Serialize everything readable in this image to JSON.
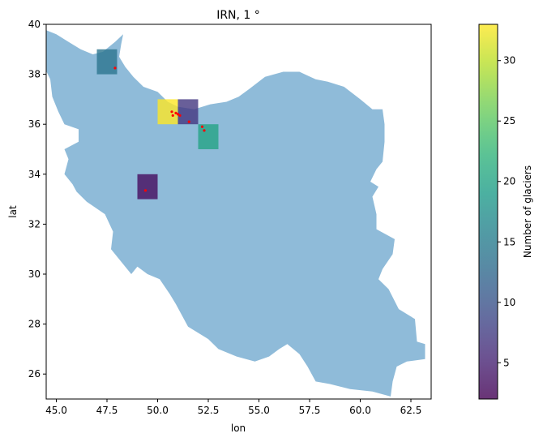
{
  "chart_data": {
    "type": "heatmap",
    "title": "IRN, 1 °",
    "xlabel": "lon",
    "ylabel": "lat",
    "xlim": [
      44.5,
      63.5
    ],
    "ylim": [
      25,
      40
    ],
    "xticks": [
      45.0,
      47.5,
      50.0,
      52.5,
      55.0,
      57.5,
      60.0,
      62.5
    ],
    "xtick_labels": [
      "45.0",
      "47.5",
      "50.0",
      "52.5",
      "55.0",
      "57.5",
      "60.0",
      "62.5"
    ],
    "yticks": [
      26,
      28,
      30,
      32,
      34,
      36,
      38,
      40
    ],
    "ytick_labels": [
      "26",
      "28",
      "30",
      "32",
      "34",
      "36",
      "38",
      "40"
    ],
    "grid": false,
    "country_color": "#8fbbd9",
    "country_outline": [
      [
        44.4,
        39.8
      ],
      [
        45.0,
        39.6
      ],
      [
        45.6,
        39.3
      ],
      [
        46.2,
        39.0
      ],
      [
        46.8,
        38.8
      ],
      [
        47.3,
        38.9
      ],
      [
        47.9,
        39.3
      ],
      [
        48.3,
        39.6
      ],
      [
        48.2,
        39.2
      ],
      [
        48.1,
        38.7
      ],
      [
        48.4,
        38.3
      ],
      [
        48.8,
        37.9
      ],
      [
        49.3,
        37.5
      ],
      [
        50.0,
        37.3
      ],
      [
        50.5,
        36.9
      ],
      [
        51.0,
        36.7
      ],
      [
        51.8,
        36.6
      ],
      [
        52.6,
        36.8
      ],
      [
        53.4,
        36.9
      ],
      [
        54.0,
        37.1
      ],
      [
        54.5,
        37.4
      ],
      [
        55.3,
        37.9
      ],
      [
        56.2,
        38.1
      ],
      [
        57.0,
        38.1
      ],
      [
        57.8,
        37.8
      ],
      [
        58.4,
        37.7
      ],
      [
        59.2,
        37.5
      ],
      [
        60.0,
        37.0
      ],
      [
        60.6,
        36.6
      ],
      [
        61.1,
        36.6
      ],
      [
        61.2,
        36.0
      ],
      [
        61.2,
        35.3
      ],
      [
        61.1,
        34.5
      ],
      [
        60.8,
        34.2
      ],
      [
        60.5,
        33.7
      ],
      [
        60.9,
        33.5
      ],
      [
        60.6,
        33.1
      ],
      [
        60.8,
        32.4
      ],
      [
        60.8,
        31.8
      ],
      [
        61.7,
        31.4
      ],
      [
        61.6,
        30.8
      ],
      [
        61.1,
        30.2
      ],
      [
        60.9,
        29.8
      ],
      [
        61.4,
        29.4
      ],
      [
        61.9,
        28.6
      ],
      [
        62.7,
        28.2
      ],
      [
        62.8,
        27.3
      ],
      [
        63.2,
        27.2
      ],
      [
        63.2,
        26.6
      ],
      [
        62.3,
        26.5
      ],
      [
        61.8,
        26.3
      ],
      [
        61.6,
        25.7
      ],
      [
        61.5,
        25.1
      ],
      [
        60.6,
        25.3
      ],
      [
        59.5,
        25.4
      ],
      [
        58.5,
        25.6
      ],
      [
        57.8,
        25.7
      ],
      [
        57.4,
        26.3
      ],
      [
        57.0,
        26.8
      ],
      [
        56.4,
        27.2
      ],
      [
        56.0,
        27.0
      ],
      [
        55.5,
        26.7
      ],
      [
        54.8,
        26.5
      ],
      [
        53.9,
        26.7
      ],
      [
        53.0,
        27.0
      ],
      [
        52.5,
        27.4
      ],
      [
        51.5,
        27.9
      ],
      [
        50.9,
        28.8
      ],
      [
        50.6,
        29.2
      ],
      [
        50.1,
        29.8
      ],
      [
        49.5,
        30.0
      ],
      [
        49.0,
        30.3
      ],
      [
        48.7,
        30.0
      ],
      [
        48.3,
        30.4
      ],
      [
        47.7,
        31.0
      ],
      [
        47.8,
        31.7
      ],
      [
        47.4,
        32.4
      ],
      [
        46.5,
        32.9
      ],
      [
        46.0,
        33.3
      ],
      [
        45.8,
        33.6
      ],
      [
        45.4,
        34.0
      ],
      [
        45.6,
        34.6
      ],
      [
        45.4,
        35.0
      ],
      [
        46.1,
        35.3
      ],
      [
        46.1,
        35.8
      ],
      [
        45.4,
        36.0
      ],
      [
        45.1,
        36.5
      ],
      [
        44.8,
        37.1
      ],
      [
        44.7,
        37.8
      ],
      [
        44.4,
        38.3
      ]
    ],
    "cells": [
      {
        "lon": 47.0,
        "lat": 38.0,
        "value": 14
      },
      {
        "lon": 50.0,
        "lat": 36.0,
        "value": 33
      },
      {
        "lon": 51.0,
        "lat": 36.0,
        "value": 7
      },
      {
        "lon": 52.0,
        "lat": 35.0,
        "value": 20
      },
      {
        "lon": 49.0,
        "lat": 33.0,
        "value": 3
      }
    ],
    "cell_size": 1,
    "points": [
      [
        47.9,
        38.25
      ],
      [
        50.7,
        36.5
      ],
      [
        50.9,
        36.45
      ],
      [
        50.75,
        36.35
      ],
      [
        51.0,
        36.4
      ],
      [
        51.1,
        36.35
      ],
      [
        51.55,
        36.1
      ],
      [
        52.2,
        35.9
      ],
      [
        52.3,
        35.75
      ],
      [
        49.4,
        33.35
      ]
    ],
    "point_color": "#ff0000",
    "colorbar": {
      "label": "Number of glaciers",
      "min": 2,
      "max": 33,
      "ticks": [
        5,
        10,
        15,
        20,
        25,
        30
      ],
      "tick_labels": [
        "5",
        "10",
        "15",
        "20",
        "25",
        "30"
      ],
      "colormap": "viridis",
      "alpha": 0.8
    }
  }
}
